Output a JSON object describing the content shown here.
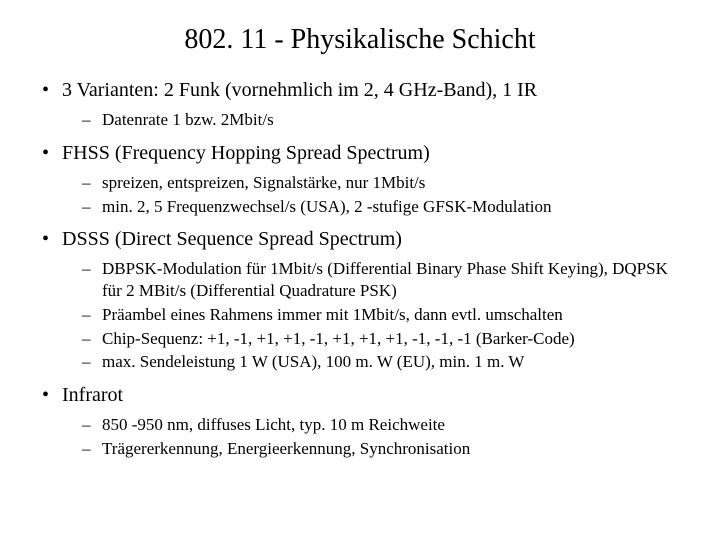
{
  "title": "802. 11 - Physikalische Schicht",
  "items": [
    {
      "label": "3 Varianten: 2 Funk (vornehmlich im 2, 4 GHz-Band), 1 IR",
      "subs": [
        "Datenrate 1 bzw. 2Mbit/s"
      ]
    },
    {
      "label": "FHSS (Frequency Hopping Spread Spectrum)",
      "subs": [
        "spreizen, entspreizen, Signalstärke, nur 1Mbit/s",
        "min. 2, 5 Frequenzwechsel/s (USA), 2 -stufige GFSK-Modulation"
      ]
    },
    {
      "label": "DSSS (Direct Sequence Spread Spectrum)",
      "subs": [
        "DBPSK-Modulation für 1Mbit/s (Differential Binary Phase Shift Keying), DQPSK für 2 MBit/s (Differential Quadrature PSK)",
        "Präambel eines Rahmens immer mit 1Mbit/s, dann evtl. umschalten",
        "Chip-Sequenz: +1, -1, +1, +1, -1, +1, +1, +1, -1, -1, -1 (Barker-Code)",
        "max. Sendeleistung 1 W (USA), 100 m. W (EU), min. 1 m. W"
      ]
    },
    {
      "label": "Infrarot",
      "subs": [
        "850 -950 nm, diffuses Licht, typ. 10 m Reichweite",
        "Trägererkennung, Energieerkennung, Synchronisation"
      ]
    }
  ]
}
